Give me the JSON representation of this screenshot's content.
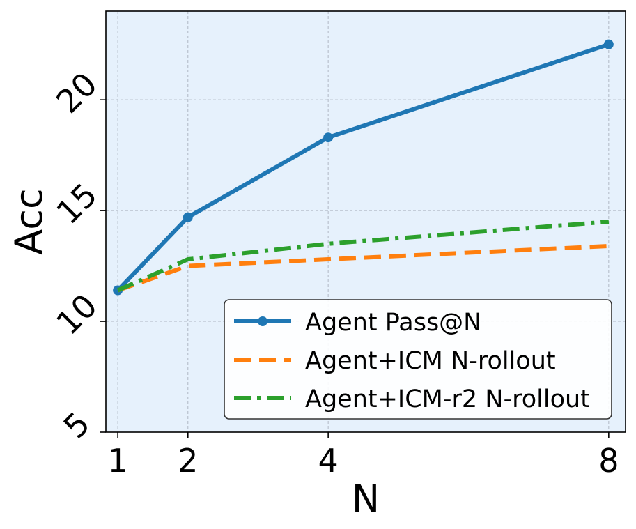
{
  "chart_data": {
    "type": "line",
    "x": [
      1,
      2,
      4,
      8
    ],
    "xticks": [
      "1",
      "2",
      "4",
      "8"
    ],
    "yticks": [
      "5",
      "10",
      "15",
      "20"
    ],
    "xlabel": "N",
    "ylabel": "Acc",
    "xlim": [
      0.83,
      8.24
    ],
    "ylim": [
      5,
      24
    ],
    "grid": true,
    "legend_position": "lower-right",
    "background_color": "#e6f1fc",
    "series": [
      {
        "name": "Agent Pass@N",
        "values": [
          11.4,
          14.7,
          18.3,
          22.5
        ],
        "color": "#1f77b4",
        "style": "solid",
        "marker": "circle"
      },
      {
        "name": "Agent+ICM N-rollout",
        "values": [
          11.4,
          12.5,
          12.8,
          13.4
        ],
        "color": "#ff7f0e",
        "style": "dashed",
        "marker": "none"
      },
      {
        "name": "Agent+ICM-r2 N-rollout",
        "values": [
          11.4,
          12.8,
          13.5,
          14.5
        ],
        "color": "#2ca02c",
        "style": "dashdot",
        "marker": "none"
      }
    ]
  }
}
